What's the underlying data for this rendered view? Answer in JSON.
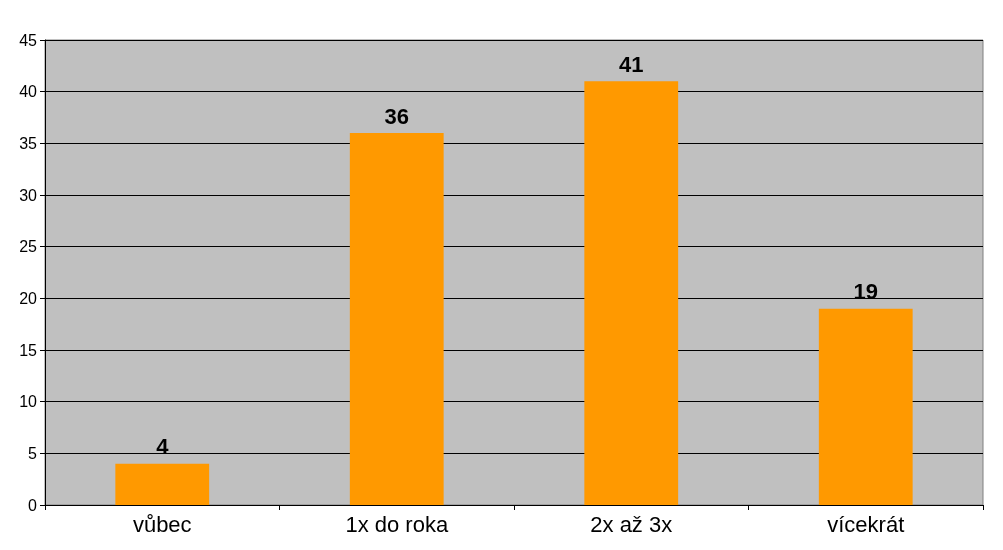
{
  "chart_data": {
    "type": "bar",
    "categories": [
      "vůbec",
      "1x do roka",
      "2x až 3x",
      "vícekrát"
    ],
    "values": [
      4,
      36,
      41,
      19
    ],
    "color": "#ff9900",
    "ylim": [
      0,
      45
    ],
    "yticks": [
      0,
      5,
      10,
      15,
      20,
      25,
      30,
      35,
      40,
      45
    ],
    "grid": "y",
    "data_labels": true
  }
}
